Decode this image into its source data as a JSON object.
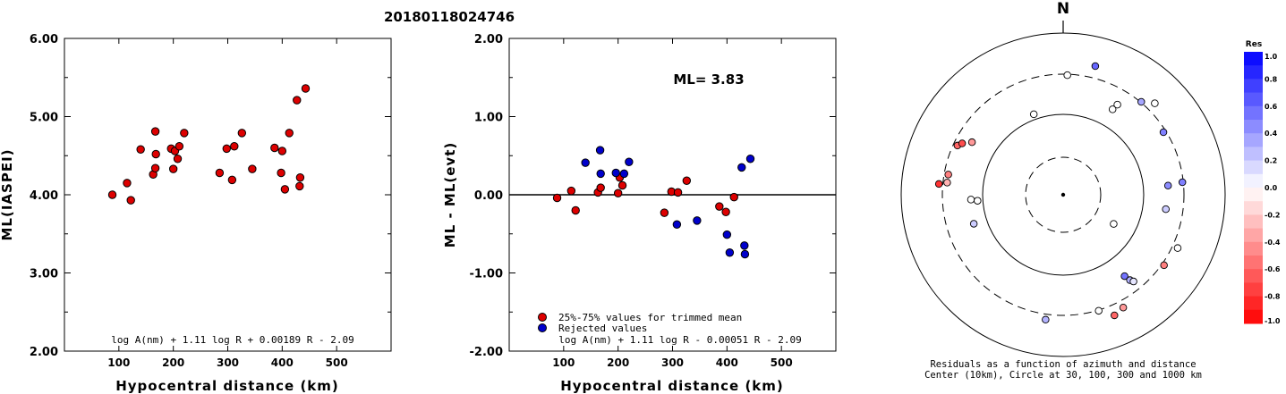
{
  "page_title": "20180118024746",
  "chart_data": [
    {
      "type": "scatter",
      "ylabel": "ML(IASPEI)",
      "xlabel": "Hypocentral distance (km)",
      "xlim": [
        0,
        600
      ],
      "ylim": [
        2.0,
        6.0
      ],
      "x_ticks": [
        "100",
        "200",
        "300",
        "400",
        "500"
      ],
      "x_tick_values": [
        100,
        200,
        300,
        400,
        500
      ],
      "y_ticks": [
        "2.00",
        "3.00",
        "4.00",
        "5.00",
        "6.00"
      ],
      "y_tick_values": [
        2,
        3,
        4,
        5,
        6
      ],
      "formula": "log A(nm) + 1.11 log R + 0.00189 R - 2.09",
      "color": "#dd0000",
      "points": [
        [
          88,
          4.0
        ],
        [
          115,
          4.15
        ],
        [
          122,
          3.93
        ],
        [
          140,
          4.58
        ],
        [
          163,
          4.26
        ],
        [
          167,
          4.81
        ],
        [
          167,
          4.34
        ],
        [
          168,
          4.52
        ],
        [
          196,
          4.59
        ],
        [
          200,
          4.33
        ],
        [
          203,
          4.56
        ],
        [
          208,
          4.46
        ],
        [
          211,
          4.62
        ],
        [
          220,
          4.79
        ],
        [
          285,
          4.28
        ],
        [
          298,
          4.59
        ],
        [
          308,
          4.19
        ],
        [
          312,
          4.62
        ],
        [
          326,
          4.79
        ],
        [
          345,
          4.33
        ],
        [
          386,
          4.6
        ],
        [
          398,
          4.28
        ],
        [
          400,
          4.56
        ],
        [
          405,
          4.07
        ],
        [
          413,
          4.79
        ],
        [
          427,
          5.21
        ],
        [
          432,
          4.11
        ],
        [
          433,
          4.22
        ],
        [
          443,
          5.36
        ]
      ]
    },
    {
      "type": "scatter",
      "ylabel": "ML - ML(evt)",
      "xlabel": "Hypocentral distance (km)",
      "xlim": [
        0,
        600
      ],
      "ylim": [
        -2.0,
        2.0
      ],
      "x_ticks": [
        "100",
        "200",
        "300",
        "400",
        "500"
      ],
      "x_tick_values": [
        100,
        200,
        300,
        400,
        500
      ],
      "y_ticks": [
        "-2.00",
        "-1.00",
        "0.00",
        "1.00",
        "2.00"
      ],
      "y_tick_values": [
        -2,
        -1,
        0,
        1,
        2
      ],
      "annotation": "ML= 3.83",
      "reference_line": 0.0,
      "formula": "log A(nm) + 1.11 log R - 0.00051 R - 2.09",
      "legend": [
        {
          "label": "25%-75% values for trimmed mean",
          "color": "#dd0000"
        },
        {
          "label": "Rejected values",
          "color": "#0000cc"
        }
      ],
      "series": [
        {
          "name": "25%-75% values for trimmed mean",
          "color": "#dd0000",
          "points": [
            [
              88,
              -0.04
            ],
            [
              114,
              0.05
            ],
            [
              122,
              -0.2
            ],
            [
              163,
              0.03
            ],
            [
              168,
              0.09
            ],
            [
              200,
              0.02
            ],
            [
              203,
              0.22
            ],
            [
              208,
              0.12
            ],
            [
              285,
              -0.23
            ],
            [
              298,
              0.04
            ],
            [
              310,
              0.03
            ],
            [
              326,
              0.18
            ],
            [
              386,
              -0.15
            ],
            [
              398,
              -0.22
            ],
            [
              413,
              -0.03
            ]
          ]
        },
        {
          "name": "Rejected values",
          "color": "#0000cc",
          "points": [
            [
              140,
              0.41
            ],
            [
              167,
              0.57
            ],
            [
              168,
              0.27
            ],
            [
              196,
              0.28
            ],
            [
              211,
              0.27
            ],
            [
              220,
              0.42
            ],
            [
              308,
              -0.38
            ],
            [
              345,
              -0.33
            ],
            [
              400,
              -0.51
            ],
            [
              405,
              -0.74
            ],
            [
              427,
              0.35
            ],
            [
              432,
              -0.65
            ],
            [
              433,
              -0.76
            ],
            [
              443,
              0.46
            ]
          ]
        }
      ]
    },
    {
      "type": "scatter",
      "subtype": "polar",
      "north_label": "N",
      "caption_line1": "Residuals as a function of azimuth and distance",
      "caption_line2": "Center (10km), Circle at 30, 100, 300 and 1000 km",
      "circles_km": [
        30,
        100,
        300,
        1000
      ],
      "points": [
        {
          "az": 2,
          "r": 0.74,
          "res": 0.0
        },
        {
          "az": 14,
          "r": 0.82,
          "res": 0.6
        },
        {
          "az": 31,
          "r": 0.65,
          "res": 0.0
        },
        {
          "az": 40,
          "r": 0.75,
          "res": 0.35
        },
        {
          "az": 30,
          "r": 0.61,
          "res": 0.0
        },
        {
          "az": 45,
          "r": 0.8,
          "res": 0.0
        },
        {
          "az": 58,
          "r": 0.73,
          "res": 0.5
        },
        {
          "az": 340,
          "r": 0.53,
          "res": 0.0
        },
        {
          "az": 295,
          "r": 0.72,
          "res": -0.6
        },
        {
          "az": 297,
          "r": 0.7,
          "res": -0.7
        },
        {
          "az": 300,
          "r": 0.65,
          "res": -0.4
        },
        {
          "az": 280,
          "r": 0.72,
          "res": -0.5
        },
        {
          "az": 276,
          "r": 0.72,
          "res": -0.3
        },
        {
          "az": 275,
          "r": 0.77,
          "res": -0.8
        },
        {
          "az": 267,
          "r": 0.57,
          "res": 0.0
        },
        {
          "az": 266,
          "r": 0.53,
          "res": 0.0
        },
        {
          "az": 252,
          "r": 0.58,
          "res": 0.2
        },
        {
          "az": 84,
          "r": 0.74,
          "res": 0.5
        },
        {
          "az": 85,
          "r": 0.65,
          "res": 0.45
        },
        {
          "az": 98,
          "r": 0.64,
          "res": 0.2
        },
        {
          "az": 120,
          "r": 0.36,
          "res": 0.0
        },
        {
          "az": 115,
          "r": 0.78,
          "res": 0.0
        },
        {
          "az": 125,
          "r": 0.76,
          "res": -0.5
        },
        {
          "az": 143,
          "r": 0.63,
          "res": 0.55
        },
        {
          "az": 142,
          "r": 0.67,
          "res": 0.3
        },
        {
          "az": 141,
          "r": 0.69,
          "res": 0.1
        },
        {
          "az": 152,
          "r": 0.79,
          "res": -0.4
        },
        {
          "az": 157,
          "r": 0.81,
          "res": -0.6
        },
        {
          "az": 163,
          "r": 0.75,
          "res": 0.0
        },
        {
          "az": 188,
          "r": 0.78,
          "res": 0.3
        }
      ]
    },
    {
      "type": "heatmap",
      "subtype": "colorbar",
      "title": "Res",
      "ticks": [
        "1.0",
        "0.8",
        "0.6",
        "0.4",
        "0.2",
        "0.0",
        "-0.2",
        "-0.4",
        "-0.6",
        "-0.8",
        "-1.0"
      ],
      "tick_values": [
        1.0,
        0.8,
        0.6,
        0.4,
        0.2,
        0.0,
        -0.2,
        -0.4,
        -0.6,
        -0.8,
        -1.0
      ],
      "range": [
        -1.0,
        1.0
      ],
      "positive_color": "#0000ff",
      "negative_color": "#ff0000",
      "zero_color": "#ffffff"
    }
  ]
}
